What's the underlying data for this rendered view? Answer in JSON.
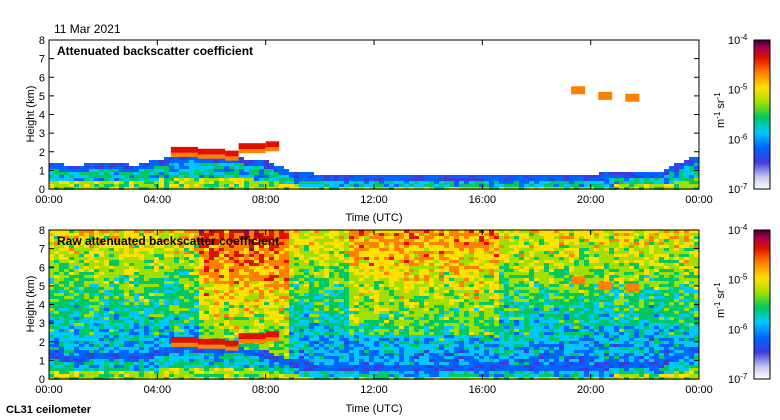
{
  "date_label": "11 Mar 2021",
  "instrument_label": "CL31 ceilometer",
  "colors": {
    "background": "#ffffff",
    "colormap": [
      "#ffffff",
      "#c8c8f0",
      "#3c3cdc",
      "#0064ff",
      "#00c8ff",
      "#00c864",
      "#a0e000",
      "#ffe000",
      "#ff8000",
      "#e01000",
      "#a00050",
      "#400030"
    ]
  },
  "chart_data": [
    {
      "type": "heatmap",
      "title": "Attenuated backscatter coefficient",
      "xlabel": "Time (UTC)",
      "ylabel": "Height (km)",
      "xlim": [
        0,
        24
      ],
      "ylim": [
        0,
        8
      ],
      "x_ticks": [
        {
          "value": 0,
          "label": "00:00"
        },
        {
          "value": 4,
          "label": "04:00"
        },
        {
          "value": 8,
          "label": "08:00"
        },
        {
          "value": 12,
          "label": "12:00"
        },
        {
          "value": 16,
          "label": "16:00"
        },
        {
          "value": 20,
          "label": "20:00"
        },
        {
          "value": 24,
          "label": "00:00"
        }
      ],
      "y_ticks": [
        0,
        1,
        2,
        3,
        4,
        5,
        6,
        7,
        8
      ],
      "colorbar": {
        "scale": "log",
        "range_exponents": [
          -7,
          -4
        ],
        "ticks": [
          {
            "exp": -4,
            "base": "10",
            "sup": "-4"
          },
          {
            "exp": -5,
            "base": "10",
            "sup": "-5"
          },
          {
            "exp": -6,
            "base": "10",
            "sup": "-6"
          },
          {
            "exp": -7,
            "base": "10",
            "sup": "-7"
          }
        ],
        "unit": {
          "m": "m",
          "m_exp": "-1",
          "sr": " sr",
          "sr_exp": "-1"
        }
      },
      "features": [
        {
          "name": "boundary layer",
          "t": [
            0,
            1,
            2,
            3,
            4,
            5,
            6,
            7,
            8,
            9,
            12,
            16,
            20,
            22.5,
            24
          ],
          "top_km": [
            1.1,
            1.0,
            1.2,
            1.0,
            1.3,
            1.6,
            1.4,
            1.4,
            1.2,
            0.6,
            0.45,
            0.5,
            0.55,
            0.7,
            1.6
          ]
        },
        {
          "name": "cloud layer",
          "t": [
            4.5,
            5.5,
            6.5,
            7.0,
            8.0,
            8.5
          ],
          "base_km": [
            2.1,
            2.0,
            1.9,
            2.3,
            2.4,
            2.2
          ]
        },
        {
          "name": "high cloud",
          "t": [
            19.5,
            20.5,
            21.5
          ],
          "height_km": [
            5.3,
            5.0,
            4.9
          ]
        }
      ]
    },
    {
      "type": "heatmap",
      "title": "Raw attenuated backscatter coefficient",
      "xlabel": "Time (UTC)",
      "ylabel": "Height (km)",
      "xlim": [
        0,
        24
      ],
      "ylim": [
        0,
        8
      ],
      "x_ticks": [
        {
          "value": 0,
          "label": "00:00"
        },
        {
          "value": 4,
          "label": "04:00"
        },
        {
          "value": 8,
          "label": "08:00"
        },
        {
          "value": 12,
          "label": "12:00"
        },
        {
          "value": 16,
          "label": "16:00"
        },
        {
          "value": 20,
          "label": "20:00"
        },
        {
          "value": 24,
          "label": "00:00"
        }
      ],
      "y_ticks": [
        0,
        1,
        2,
        3,
        4,
        5,
        6,
        7,
        8
      ],
      "colorbar": {
        "scale": "log",
        "range_exponents": [
          -7,
          -4
        ],
        "ticks": [
          {
            "exp": -4,
            "base": "10",
            "sup": "-4"
          },
          {
            "exp": -5,
            "base": "10",
            "sup": "-5"
          },
          {
            "exp": -6,
            "base": "10",
            "sup": "-6"
          },
          {
            "exp": -7,
            "base": "10",
            "sup": "-7"
          }
        ],
        "unit": {
          "m": "m",
          "m_exp": "-1",
          "sr": " sr",
          "sr_exp": "-1"
        }
      },
      "features": [
        {
          "name": "boundary layer",
          "t": [
            0,
            1,
            2,
            3,
            4,
            5,
            6,
            7,
            8,
            9,
            12,
            16,
            20,
            22.5,
            24
          ],
          "top_km": [
            1.1,
            1.0,
            1.2,
            1.0,
            1.3,
            1.6,
            1.4,
            1.4,
            1.2,
            0.6,
            0.45,
            0.5,
            0.55,
            0.7,
            1.6
          ]
        },
        {
          "name": "cloud layer",
          "t": [
            4.5,
            5.5,
            6.5,
            7.0,
            8.0,
            8.5
          ],
          "base_km": [
            2.1,
            2.0,
            1.9,
            2.3,
            2.4,
            2.2
          ]
        },
        {
          "name": "high cloud",
          "t": [
            19.5,
            20.5,
            21.5
          ],
          "height_km": [
            5.3,
            5.0,
            4.9
          ]
        }
      ]
    }
  ]
}
